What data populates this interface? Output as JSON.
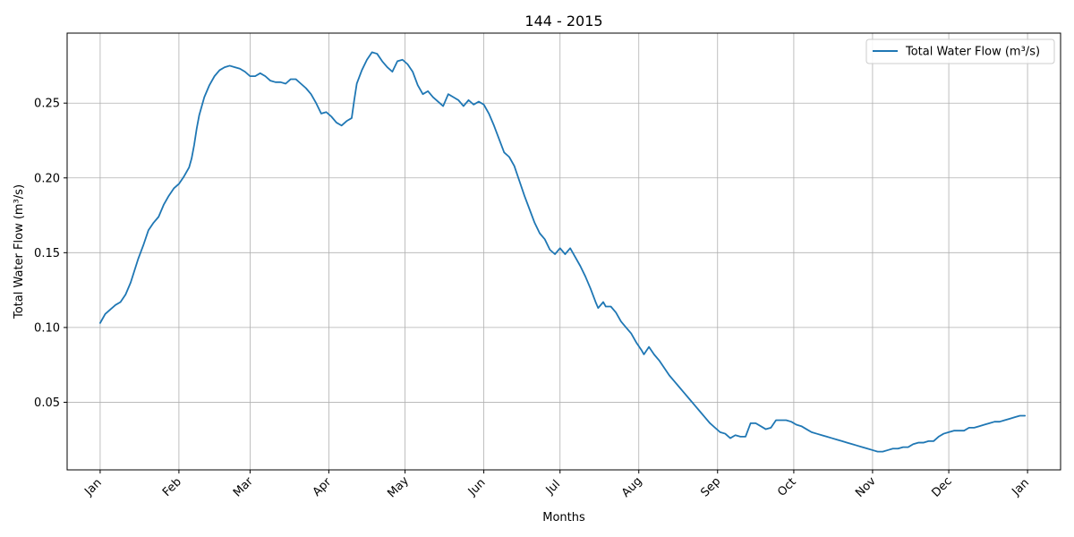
{
  "chart_data": {
    "type": "line",
    "title": "144 - 2015",
    "xlabel": "Months",
    "ylabel": "Total Water Flow (m³/s)",
    "x_tick_labels": [
      "Jan",
      "Feb",
      "Mar",
      "Apr",
      "May",
      "Jun",
      "Jul",
      "Aug",
      "Sep",
      "Oct",
      "Nov",
      "Dec",
      "Jan"
    ],
    "x_tick_dates": [
      "2015-01-01",
      "2015-02-01",
      "2015-03-01",
      "2015-04-01",
      "2015-05-01",
      "2015-06-01",
      "2015-07-01",
      "2015-08-01",
      "2015-09-01",
      "2015-10-01",
      "2015-11-01",
      "2015-12-01",
      "2016-01-01"
    ],
    "y_tick_labels": [
      "0.05",
      "0.10",
      "0.15",
      "0.20",
      "0.25"
    ],
    "y_ticks": [
      0.05,
      0.1,
      0.15,
      0.2,
      0.25
    ],
    "xlim": [
      "2014-12-19",
      "2016-01-14"
    ],
    "ylim": [
      0.0048,
      0.2968
    ],
    "grid": true,
    "legend_position": "top-right",
    "line_color": "#1f77b4",
    "series": [
      {
        "name": "Total Water Flow (m³/s)",
        "points": [
          [
            "2015-01-01",
            0.103
          ],
          [
            "2015-01-03",
            0.109
          ],
          [
            "2015-01-05",
            0.112
          ],
          [
            "2015-01-07",
            0.115
          ],
          [
            "2015-01-09",
            0.117
          ],
          [
            "2015-01-11",
            0.122
          ],
          [
            "2015-01-13",
            0.13
          ],
          [
            "2015-01-16",
            0.146
          ],
          [
            "2015-01-18",
            0.155
          ],
          [
            "2015-01-20",
            0.165
          ],
          [
            "2015-01-22",
            0.17
          ],
          [
            "2015-01-24",
            0.174
          ],
          [
            "2015-01-26",
            0.182
          ],
          [
            "2015-01-28",
            0.188
          ],
          [
            "2015-01-30",
            0.193
          ],
          [
            "2015-02-01",
            0.196
          ],
          [
            "2015-02-03",
            0.201
          ],
          [
            "2015-02-05",
            0.207
          ],
          [
            "2015-02-06",
            0.213
          ],
          [
            "2015-02-07",
            0.222
          ],
          [
            "2015-02-08",
            0.233
          ],
          [
            "2015-02-09",
            0.242
          ],
          [
            "2015-02-11",
            0.254
          ],
          [
            "2015-02-13",
            0.262
          ],
          [
            "2015-02-15",
            0.268
          ],
          [
            "2015-02-17",
            0.272
          ],
          [
            "2015-02-19",
            0.274
          ],
          [
            "2015-02-21",
            0.275
          ],
          [
            "2015-02-23",
            0.274
          ],
          [
            "2015-02-25",
            0.273
          ],
          [
            "2015-02-27",
            0.271
          ],
          [
            "2015-03-01",
            0.268
          ],
          [
            "2015-03-03",
            0.268
          ],
          [
            "2015-03-05",
            0.27
          ],
          [
            "2015-03-07",
            0.268
          ],
          [
            "2015-03-09",
            0.265
          ],
          [
            "2015-03-11",
            0.264
          ],
          [
            "2015-03-13",
            0.264
          ],
          [
            "2015-03-15",
            0.263
          ],
          [
            "2015-03-17",
            0.266
          ],
          [
            "2015-03-19",
            0.266
          ],
          [
            "2015-03-21",
            0.263
          ],
          [
            "2015-03-23",
            0.26
          ],
          [
            "2015-03-25",
            0.256
          ],
          [
            "2015-03-27",
            0.25
          ],
          [
            "2015-03-29",
            0.243
          ],
          [
            "2015-03-31",
            0.244
          ],
          [
            "2015-04-02",
            0.241
          ],
          [
            "2015-04-04",
            0.237
          ],
          [
            "2015-04-06",
            0.235
          ],
          [
            "2015-04-08",
            0.238
          ],
          [
            "2015-04-10",
            0.24
          ],
          [
            "2015-04-11",
            0.252
          ],
          [
            "2015-04-12",
            0.263
          ],
          [
            "2015-04-14",
            0.272
          ],
          [
            "2015-04-16",
            0.279
          ],
          [
            "2015-04-18",
            0.284
          ],
          [
            "2015-04-20",
            0.283
          ],
          [
            "2015-04-22",
            0.278
          ],
          [
            "2015-04-24",
            0.274
          ],
          [
            "2015-04-26",
            0.271
          ],
          [
            "2015-04-28",
            0.278
          ],
          [
            "2015-04-30",
            0.279
          ],
          [
            "2015-05-02",
            0.276
          ],
          [
            "2015-05-04",
            0.271
          ],
          [
            "2015-05-06",
            0.262
          ],
          [
            "2015-05-08",
            0.256
          ],
          [
            "2015-05-10",
            0.258
          ],
          [
            "2015-05-12",
            0.254
          ],
          [
            "2015-05-14",
            0.251
          ],
          [
            "2015-05-16",
            0.248
          ],
          [
            "2015-05-18",
            0.256
          ],
          [
            "2015-05-20",
            0.254
          ],
          [
            "2015-05-22",
            0.252
          ],
          [
            "2015-05-24",
            0.248
          ],
          [
            "2015-05-26",
            0.252
          ],
          [
            "2015-05-28",
            0.249
          ],
          [
            "2015-05-30",
            0.251
          ],
          [
            "2015-06-01",
            0.249
          ],
          [
            "2015-06-03",
            0.243
          ],
          [
            "2015-06-05",
            0.235
          ],
          [
            "2015-06-07",
            0.226
          ],
          [
            "2015-06-09",
            0.217
          ],
          [
            "2015-06-11",
            0.214
          ],
          [
            "2015-06-13",
            0.208
          ],
          [
            "2015-06-15",
            0.198
          ],
          [
            "2015-06-17",
            0.188
          ],
          [
            "2015-06-19",
            0.179
          ],
          [
            "2015-06-21",
            0.17
          ],
          [
            "2015-06-23",
            0.163
          ],
          [
            "2015-06-25",
            0.159
          ],
          [
            "2015-06-27",
            0.152
          ],
          [
            "2015-06-29",
            0.149
          ],
          [
            "2015-07-01",
            0.153
          ],
          [
            "2015-07-03",
            0.149
          ],
          [
            "2015-07-05",
            0.153
          ],
          [
            "2015-07-07",
            0.147
          ],
          [
            "2015-07-09",
            0.141
          ],
          [
            "2015-07-11",
            0.134
          ],
          [
            "2015-07-13",
            0.126
          ],
          [
            "2015-07-15",
            0.117
          ],
          [
            "2015-07-16",
            0.113
          ],
          [
            "2015-07-18",
            0.117
          ],
          [
            "2015-07-19",
            0.114
          ],
          [
            "2015-07-21",
            0.114
          ],
          [
            "2015-07-23",
            0.11
          ],
          [
            "2015-07-25",
            0.104
          ],
          [
            "2015-07-27",
            0.1
          ],
          [
            "2015-07-29",
            0.096
          ],
          [
            "2015-07-31",
            0.09
          ],
          [
            "2015-08-02",
            0.085
          ],
          [
            "2015-08-03",
            0.082
          ],
          [
            "2015-08-05",
            0.087
          ],
          [
            "2015-08-07",
            0.082
          ],
          [
            "2015-08-09",
            0.078
          ],
          [
            "2015-08-11",
            0.073
          ],
          [
            "2015-08-13",
            0.068
          ],
          [
            "2015-08-15",
            0.064
          ],
          [
            "2015-08-17",
            0.06
          ],
          [
            "2015-08-19",
            0.056
          ],
          [
            "2015-08-21",
            0.052
          ],
          [
            "2015-08-23",
            0.048
          ],
          [
            "2015-08-25",
            0.044
          ],
          [
            "2015-08-27",
            0.04
          ],
          [
            "2015-08-29",
            0.036
          ],
          [
            "2015-08-31",
            0.033
          ],
          [
            "2015-09-02",
            0.03
          ],
          [
            "2015-09-04",
            0.029
          ],
          [
            "2015-09-06",
            0.026
          ],
          [
            "2015-09-08",
            0.028
          ],
          [
            "2015-09-10",
            0.027
          ],
          [
            "2015-09-12",
            0.027
          ],
          [
            "2015-09-14",
            0.036
          ],
          [
            "2015-09-16",
            0.036
          ],
          [
            "2015-09-18",
            0.034
          ],
          [
            "2015-09-20",
            0.032
          ],
          [
            "2015-09-22",
            0.033
          ],
          [
            "2015-09-24",
            0.038
          ],
          [
            "2015-09-26",
            0.038
          ],
          [
            "2015-09-28",
            0.038
          ],
          [
            "2015-09-30",
            0.037
          ],
          [
            "2015-10-02",
            0.035
          ],
          [
            "2015-10-04",
            0.034
          ],
          [
            "2015-10-06",
            0.032
          ],
          [
            "2015-10-08",
            0.03
          ],
          [
            "2015-10-10",
            0.029
          ],
          [
            "2015-10-12",
            0.028
          ],
          [
            "2015-10-14",
            0.027
          ],
          [
            "2015-10-16",
            0.026
          ],
          [
            "2015-10-18",
            0.025
          ],
          [
            "2015-10-20",
            0.024
          ],
          [
            "2015-10-22",
            0.023
          ],
          [
            "2015-10-24",
            0.022
          ],
          [
            "2015-10-26",
            0.021
          ],
          [
            "2015-10-28",
            0.02
          ],
          [
            "2015-10-30",
            0.019
          ],
          [
            "2015-11-01",
            0.018
          ],
          [
            "2015-11-03",
            0.017
          ],
          [
            "2015-11-05",
            0.017
          ],
          [
            "2015-11-07",
            0.018
          ],
          [
            "2015-11-09",
            0.019
          ],
          [
            "2015-11-11",
            0.019
          ],
          [
            "2015-11-13",
            0.02
          ],
          [
            "2015-11-15",
            0.02
          ],
          [
            "2015-11-17",
            0.022
          ],
          [
            "2015-11-19",
            0.023
          ],
          [
            "2015-11-21",
            0.023
          ],
          [
            "2015-11-23",
            0.024
          ],
          [
            "2015-11-25",
            0.024
          ],
          [
            "2015-11-27",
            0.027
          ],
          [
            "2015-11-29",
            0.029
          ],
          [
            "2015-12-01",
            0.03
          ],
          [
            "2015-12-03",
            0.031
          ],
          [
            "2015-12-05",
            0.031
          ],
          [
            "2015-12-07",
            0.031
          ],
          [
            "2015-12-09",
            0.033
          ],
          [
            "2015-12-11",
            0.033
          ],
          [
            "2015-12-13",
            0.034
          ],
          [
            "2015-12-15",
            0.035
          ],
          [
            "2015-12-17",
            0.036
          ],
          [
            "2015-12-19",
            0.037
          ],
          [
            "2015-12-21",
            0.037
          ],
          [
            "2015-12-23",
            0.038
          ],
          [
            "2015-12-25",
            0.039
          ],
          [
            "2015-12-27",
            0.04
          ],
          [
            "2015-12-29",
            0.041
          ],
          [
            "2015-12-31",
            0.041
          ]
        ]
      }
    ]
  }
}
